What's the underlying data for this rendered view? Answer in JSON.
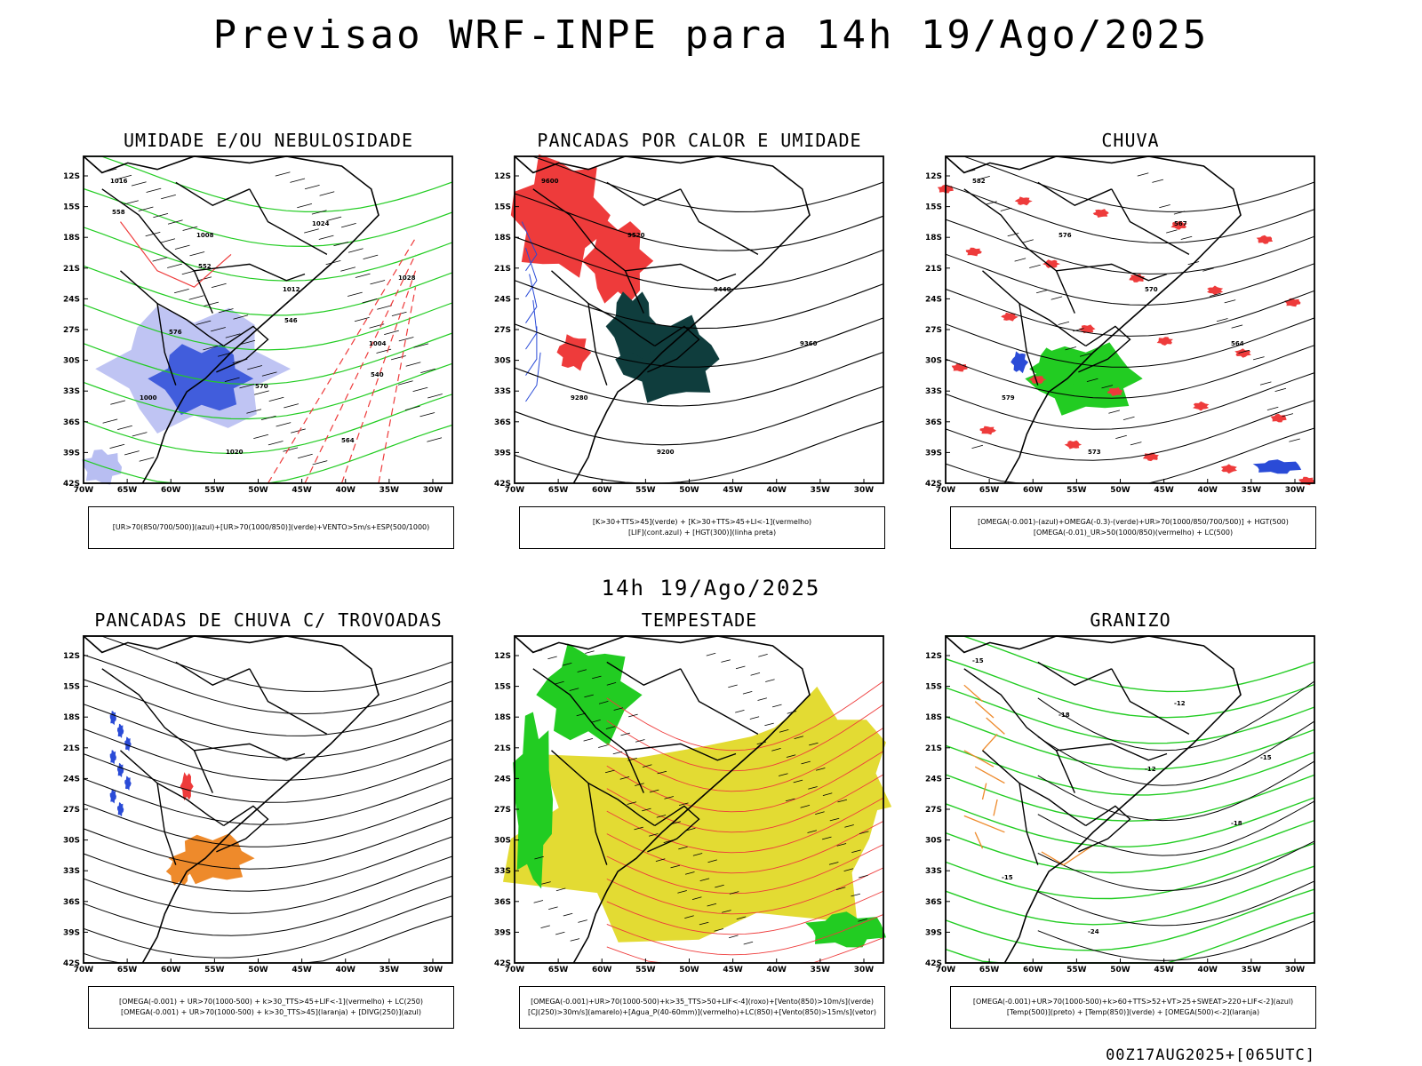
{
  "title": "Previsao WRF-INPE  para 14h 19/Ago/2025",
  "mid_label": "14h 19/Ago/2025",
  "footer": "00Z17AUG2025+[065UTC]",
  "axis": {
    "lat_labels": [
      "12S",
      "15S",
      "18S",
      "21S",
      "24S",
      "27S",
      "30S",
      "33S",
      "36S",
      "39S",
      "42S"
    ],
    "lon_labels": [
      "70W",
      "65W",
      "60W",
      "55W",
      "50W",
      "45W",
      "40W",
      "35W",
      "30W"
    ]
  },
  "colors": {
    "blue": "#2a4bd7",
    "green": "#22cc22",
    "red": "#ee3b3b",
    "darkgreen": "#0f3d3d",
    "yellow": "#e3db33",
    "orange": "#ee8a2b",
    "lightblue": "#b8bef2"
  },
  "panels": [
    {
      "id": "umidade",
      "title": "UMIDADE E/OU NEBULOSIDADE",
      "legend": [
        "[UR>70(850/700/500)](azul)+[UR>70(1000/850)](verde)+VENTO>5m/s+ESP(500/1000)"
      ],
      "labels": [
        "1016",
        "1008",
        "1012",
        "1004",
        "1000",
        "1020",
        "1024",
        "1028",
        "576",
        "570",
        "564",
        "558",
        "552",
        "546",
        "540"
      ]
    },
    {
      "id": "pancadas-calor",
      "title": "PANCADAS POR CALOR E UMIDADE",
      "legend": [
        "[K>30+TTS>45](verde) + [K>30+TTS>45+LI<-1](vermelho)",
        "[LIF](cont.azul) + [HGT(300)](linha preta)"
      ],
      "labels": [
        "9600",
        "9520",
        "9440",
        "9360",
        "9280",
        "9200"
      ]
    },
    {
      "id": "chuva",
      "title": "CHUVA",
      "legend": [
        "[OMEGA(-0.001)-(azul)+OMEGA(-0.3)-(verde)+UR>70(1000/850/700/500)] + HGT(500)",
        "[OMEGA(-0.01)_UR>50(1000/850)(vermelho) + LC(500)"
      ],
      "labels": [
        "582",
        "576",
        "570",
        "564",
        "579",
        "573",
        "567"
      ]
    },
    {
      "id": "trovoadas",
      "title": "PANCADAS DE CHUVA C/ TROVOADAS",
      "legend": [
        "[OMEGA(-0.001) + UR>70(1000-500) + k>30_TTS>45+LIF<-1](vermelho) + LC(250)",
        "[OMEGA(-0.001) + UR>70(1000-500) + k>30_TTS>45](laranja) + [DIVG(250)](azul)"
      ],
      "labels": []
    },
    {
      "id": "tempestade",
      "title": "TEMPESTADE",
      "legend": [
        "[OMEGA(-0.001)+UR>70(1000-500)+k>35_TTS>50+LIF<-4](roxo)+[Vento(850)>10m/s](verde)",
        "[CJ(250)>30m/s](amarelo)+[Agua_P(40-60mm)](vermelho)+LC(850)+[Vento(850)>15m/s](vetor)"
      ],
      "labels": []
    },
    {
      "id": "granizo",
      "title": "GRANIZO",
      "legend": [
        "[OMEGA(-0.001)+UR>70(1000-500)+k>60+TTS>52+VT>25+SWEAT>220+LIF<-2](azul)",
        "[Temp(500)](preto) + [Temp(850)](verde) + [OMEGA(500)<-2](laranja)"
      ],
      "labels": [
        "-15",
        "-18",
        "-12",
        "-18",
        "-15",
        "-24",
        "-12",
        "-15"
      ]
    }
  ]
}
